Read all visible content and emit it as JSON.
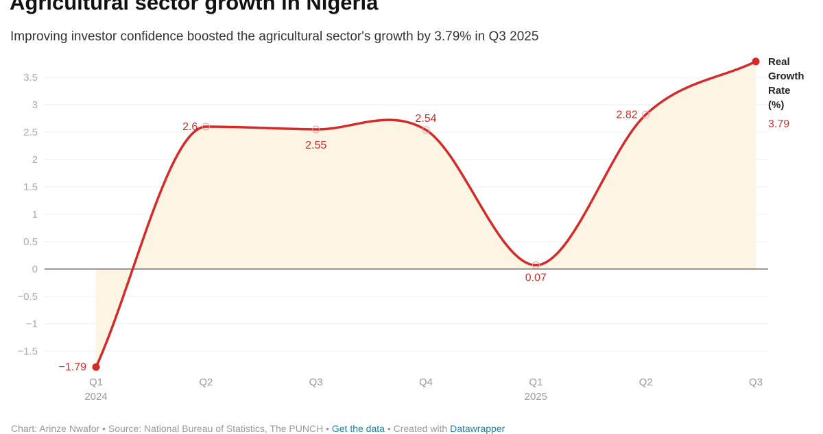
{
  "title": "Agricultural sector growth in Nigeria",
  "subtitle": "Improving investor confidence boosted the agricultural sector's growth by 3.79% in Q3 2025",
  "footer": {
    "chart_by": "Chart: Arinze Nwafor",
    "source": "Source: National Bureau of Statistics, The PUNCH",
    "get_data": "Get the data",
    "created_with": "Created with",
    "datawrapper": "Datawrapper"
  },
  "colors": {
    "line": "#d52a2a",
    "area": "#fdf5e4",
    "zero_line": "#333333",
    "link": "#1d81a2"
  },
  "chart_data": {
    "type": "line",
    "categories": [
      "Q1 2024",
      "Q2",
      "Q3",
      "Q4",
      "Q1 2025",
      "Q2",
      "Q3"
    ],
    "x_tick_labels": [
      [
        "Q1",
        "2024"
      ],
      [
        "Q2"
      ],
      [
        "Q3"
      ],
      [
        "Q4"
      ],
      [
        "Q1",
        "2025"
      ],
      [
        "Q2"
      ],
      [
        "Q3"
      ]
    ],
    "series": [
      {
        "name": "Real Growth Rate (%)",
        "name_lines": [
          "Real",
          "Growth",
          "Rate",
          "(%)"
        ],
        "values": [
          -1.79,
          2.6,
          2.55,
          2.54,
          0.07,
          2.82,
          3.79
        ]
      }
    ],
    "data_labels": [
      "−1.79",
      "2.6",
      "2.55",
      "2.54",
      "0.07",
      "2.82",
      "3.79"
    ],
    "y_ticks": [
      3.5,
      3,
      2.5,
      2,
      1.5,
      1,
      0.5,
      0,
      -0.5,
      -1,
      -1.5
    ],
    "y_tick_labels": [
      "3.5",
      "3",
      "2.5",
      "2",
      "1.5",
      "1",
      "0.5",
      "0",
      "−0.5",
      "−1",
      "−1.5"
    ],
    "ylim": [
      -1.79,
      3.79
    ],
    "grid": true,
    "area_fill": true,
    "legend": "right-end-label"
  }
}
